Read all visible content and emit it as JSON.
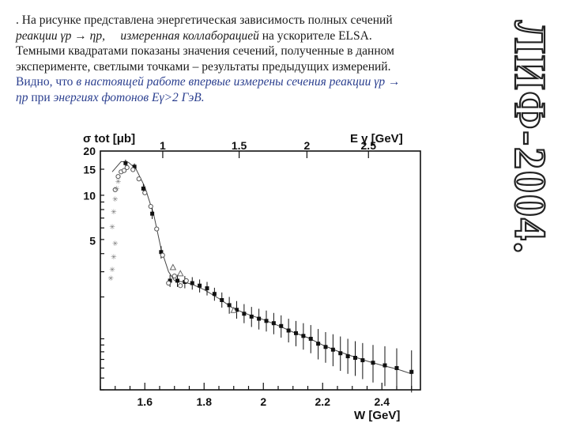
{
  "text": {
    "line1": ". На рисунке представлена энергетическая зависимость полных сечений",
    "line2_a": "реакции γp → ηp,",
    "line2_b": "измеренная коллаборацией",
    "line2_c": "на ускорителе ELSA.",
    "line3": "Темными квадратами показаны значения сечений, полученные в данном",
    "line4": "эксперименте, светлыми точками – результаты предыдущих измерений.",
    "line5_a": "Видно, что",
    "line5_b": "в настоящей работе впервые измерены сечения реакции γp →",
    "line6_a": "ηp",
    "line6_b": "при",
    "line6_c": "энергиях фотонов  Eγ>2 ГэВ."
  },
  "side_title": "ЛИФ-2004.",
  "chart_data": {
    "type": "scatter",
    "ylabel": "σ tot [μb]",
    "xlabel": "W [GeV]",
    "top_axis_label": "E γ [GeV]",
    "x_ticks": [
      "1.6",
      "1.8",
      "2",
      "2.2",
      "2.4"
    ],
    "x_tick_values": [
      1.6,
      1.8,
      2.0,
      2.2,
      2.4
    ],
    "top_ticks": [
      "1",
      "1.5",
      "2",
      "2.5"
    ],
    "top_tick_w": [
      1.6605,
      1.9183,
      2.147,
      2.3547
    ],
    "y_ticks": [
      "20",
      "15",
      "10",
      "5"
    ],
    "y_tick_values": [
      20,
      15,
      10,
      5
    ],
    "xlim": [
      1.45,
      2.53
    ],
    "ylim_log": [
      0.5,
      20
    ],
    "y_scale": "log",
    "series": [
      {
        "marker": "filled-square",
        "points": [
          [
            1.535,
            16.6,
            17.5,
            15.7
          ],
          [
            1.565,
            15.7,
            16.5,
            14.9
          ],
          [
            1.595,
            11.2,
            12.0,
            10.4
          ],
          [
            1.625,
            7.6,
            8.3,
            7.0
          ],
          [
            1.655,
            4.2,
            4.6,
            3.8
          ],
          [
            1.685,
            2.7,
            2.95,
            2.45
          ],
          [
            1.71,
            2.7,
            2.95,
            2.45
          ],
          [
            1.735,
            2.65,
            2.9,
            2.4
          ],
          [
            1.76,
            2.6,
            2.85,
            2.35
          ],
          [
            1.785,
            2.5,
            2.75,
            2.25
          ],
          [
            1.81,
            2.4,
            2.65,
            2.15
          ],
          [
            1.835,
            2.2,
            2.42,
            1.98
          ],
          [
            1.86,
            2.0,
            2.25,
            1.78
          ],
          [
            1.885,
            1.85,
            2.1,
            1.62
          ],
          [
            1.91,
            1.72,
            1.97,
            1.5
          ],
          [
            1.935,
            1.62,
            1.88,
            1.4
          ],
          [
            1.96,
            1.55,
            1.8,
            1.32
          ],
          [
            1.985,
            1.5,
            1.75,
            1.27
          ],
          [
            2.01,
            1.45,
            1.7,
            1.23
          ],
          [
            2.035,
            1.4,
            1.64,
            1.18
          ],
          [
            2.06,
            1.34,
            1.58,
            1.12
          ],
          [
            2.085,
            1.25,
            1.5,
            1.04
          ],
          [
            2.11,
            1.2,
            1.45,
            0.98
          ],
          [
            2.135,
            1.15,
            1.4,
            0.93
          ],
          [
            2.16,
            1.1,
            1.36,
            0.88
          ],
          [
            2.185,
            1.02,
            1.28,
            0.8
          ],
          [
            2.21,
            0.97,
            1.22,
            0.76
          ],
          [
            2.235,
            0.93,
            1.18,
            0.72
          ],
          [
            2.26,
            0.88,
            1.14,
            0.67
          ],
          [
            2.285,
            0.84,
            1.1,
            0.64
          ],
          [
            2.31,
            0.82,
            1.06,
            0.62
          ],
          [
            2.335,
            0.79,
            1.03,
            0.59
          ],
          [
            2.37,
            0.76,
            1.0,
            0.56
          ],
          [
            2.41,
            0.73,
            0.98,
            0.53
          ],
          [
            2.45,
            0.7,
            0.95,
            0.5
          ],
          [
            2.5,
            0.66,
            0.92,
            0.48
          ]
        ]
      },
      {
        "marker": "open-circle",
        "points": [
          [
            1.5,
            11.0
          ],
          [
            1.51,
            13.5
          ],
          [
            1.52,
            14.5
          ],
          [
            1.53,
            14.8
          ],
          [
            1.54,
            15.5
          ],
          [
            1.56,
            15.0
          ],
          [
            1.58,
            13.0
          ],
          [
            1.6,
            10.5
          ],
          [
            1.62,
            8.5
          ],
          [
            1.64,
            6.0
          ],
          [
            1.66,
            4.0
          ],
          [
            1.68,
            2.6
          ],
          [
            1.7,
            2.9
          ],
          [
            1.72,
            2.5
          ],
          [
            1.74,
            2.7
          ]
        ]
      },
      {
        "marker": "open-star",
        "points": [
          [
            1.49,
            6.2
          ],
          [
            1.495,
            7.8
          ],
          [
            1.5,
            9.5
          ],
          [
            1.505,
            11.2
          ],
          [
            1.51,
            12.5
          ],
          [
            1.5,
            4.8
          ],
          [
            1.495,
            3.9
          ],
          [
            1.49,
            3.2
          ],
          [
            1.485,
            2.8
          ]
        ]
      },
      {
        "marker": "open-triangle",
        "points": [
          [
            1.695,
            3.3
          ],
          [
            1.72,
            3.0
          ],
          [
            1.9,
            1.7
          ]
        ]
      }
    ],
    "fit_curve": [
      [
        1.49,
        14.5
      ],
      [
        1.52,
        17.0
      ],
      [
        1.545,
        16.8
      ],
      [
        1.57,
        15.2
      ],
      [
        1.6,
        11.5
      ],
      [
        1.63,
        7.5
      ],
      [
        1.655,
        4.4
      ],
      [
        1.68,
        3.1
      ],
      [
        1.7,
        2.7
      ],
      [
        1.73,
        2.65
      ],
      [
        1.76,
        2.55
      ],
      [
        1.8,
        2.35
      ],
      [
        1.85,
        2.05
      ],
      [
        1.9,
        1.75
      ],
      [
        1.95,
        1.6
      ],
      [
        2.0,
        1.48
      ],
      [
        2.05,
        1.35
      ],
      [
        2.1,
        1.22
      ],
      [
        2.15,
        1.12
      ],
      [
        2.2,
        1.0
      ],
      [
        2.25,
        0.91
      ],
      [
        2.3,
        0.84
      ],
      [
        2.35,
        0.78
      ],
      [
        2.4,
        0.73
      ],
      [
        2.45,
        0.69
      ],
      [
        2.5,
        0.64
      ]
    ]
  }
}
